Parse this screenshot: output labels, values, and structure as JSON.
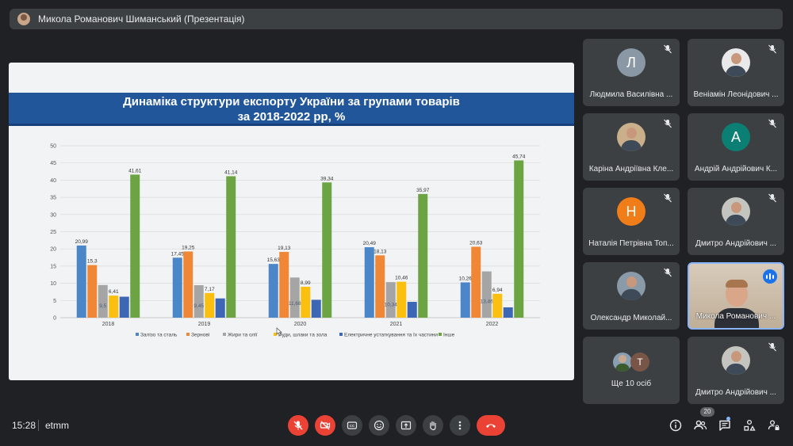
{
  "header": {
    "presenter": "Микола Романович Шиманський (Презентація)"
  },
  "slide": {
    "title_line1": "Динаміка структури експорту України за групами товарів",
    "title_line2": "за 2018-2022 рр, %"
  },
  "chart_data": {
    "type": "bar",
    "title": "Динаміка структури експорту України за групами товарів за 2018-2022 рр, %",
    "categories": [
      "2018",
      "2019",
      "2020",
      "2021",
      "2022"
    ],
    "ylim": [
      0,
      50
    ],
    "yticks": [
      0,
      5,
      10,
      15,
      20,
      25,
      30,
      35,
      40,
      45,
      50
    ],
    "legend_position": "bottom",
    "grid": true,
    "series": [
      {
        "name": "Залізо та сталь",
        "color": "#4a86c8",
        "values": [
          20.99,
          17.45,
          15.63,
          20.49,
          10.26
        ],
        "labels": [
          "20,99",
          "17,45",
          "15,63",
          "20,49",
          "10,26"
        ]
      },
      {
        "name": "Зернові",
        "color": "#ef8737",
        "values": [
          15.3,
          19.25,
          19.13,
          18.13,
          20.63
        ],
        "labels": [
          "15,3",
          "19,25",
          "19,13",
          "18,13",
          "20,63"
        ]
      },
      {
        "name": "Жири та олії",
        "color": "#a5a5a5",
        "values": [
          9.5,
          9.45,
          11.68,
          10.34,
          13.46
        ],
        "labels": [
          "9,5",
          "9,45",
          "11,68",
          "10,34",
          "13,46"
        ]
      },
      {
        "name": "Руди, шлаки та зола",
        "color": "#fbbf0f",
        "values": [
          6.41,
          7.17,
          8.99,
          10.46,
          6.94
        ],
        "labels": [
          "6,41",
          "7,17",
          "8,99",
          "10,46",
          "6,94"
        ]
      },
      {
        "name": "Електричне устаткування та їх частини",
        "color": "#3d67b5",
        "values": [
          6.1,
          5.6,
          5.2,
          4.6,
          3.0
        ],
        "labels": [
          "",
          "",
          "",
          "",
          ""
        ]
      },
      {
        "name": "Інше",
        "color": "#6da443",
        "values": [
          41.61,
          41.14,
          39.34,
          35.97,
          45.74
        ],
        "labels": [
          "41,61",
          "41,14",
          "39,34",
          "35,97",
          "45,74"
        ]
      }
    ]
  },
  "participants": [
    {
      "name": "Людмила Василівна ...",
      "initial": "Л",
      "avatar_color": "#8a98a6",
      "muted": true
    },
    {
      "name": "Веніамін Леонідович ...",
      "initial": "",
      "avatar_color": "#e9e9e9",
      "muted": true
    },
    {
      "name": "Каріна Андріївна Кле...",
      "initial": "",
      "avatar_color": "#c9b08a",
      "muted": true
    },
    {
      "name": "Андрій Андрійович К...",
      "initial": "А",
      "avatar_color": "#0b7f74",
      "muted": true
    },
    {
      "name": "Наталія Петрівна Топ...",
      "initial": "Н",
      "avatar_color": "#f07d17",
      "muted": true
    },
    {
      "name": "Дмитро Андрійович ...",
      "initial": "",
      "avatar_color": "#c5c5c0",
      "muted": true
    },
    {
      "name": "Олександр Миколай...",
      "initial": "",
      "avatar_color": "#8a9aa8",
      "muted": true
    },
    {
      "name": "Микола Романович ...",
      "initial": "",
      "avatar_color": "#cdbfae",
      "muted": false
    }
  ],
  "others": {
    "label": "Ще 10 осіб",
    "initial": "Т"
  },
  "last_tile": {
    "name": "Дмитро Андрійович ...",
    "muted": true
  },
  "footer": {
    "time": "15:28",
    "meeting_code": "etmm",
    "participant_count": "20"
  },
  "colors": {
    "end_call": "#ea4335",
    "muted_control": "#ea4335",
    "control_bg": "#3c4043",
    "active_speaker": "#1a73e8"
  }
}
